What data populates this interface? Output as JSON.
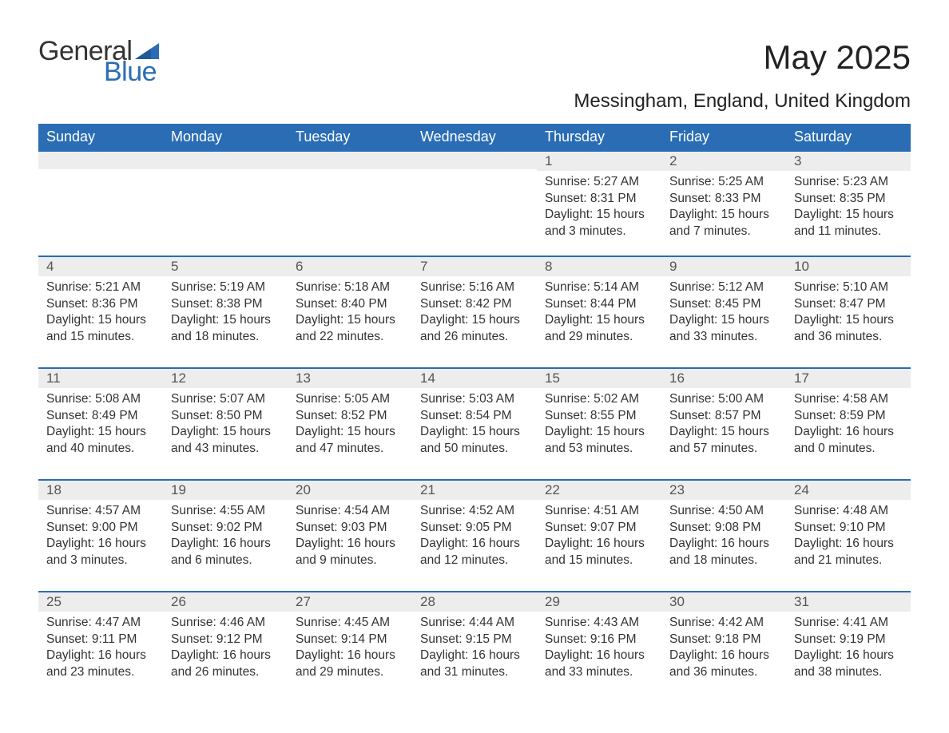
{
  "logo": {
    "general": "General",
    "blue": "Blue",
    "flag_color": "#2a6db5"
  },
  "title": "May 2025",
  "subtitle": "Messingham, England, United Kingdom",
  "colors": {
    "header_bg": "#2a6db5",
    "header_text": "#ffffff",
    "daynum_bg": "#ededed",
    "daynum_border": "#2a6db5",
    "body_text": "#333333",
    "page_bg": "#ffffff"
  },
  "weekdays": [
    "Sunday",
    "Monday",
    "Tuesday",
    "Wednesday",
    "Thursday",
    "Friday",
    "Saturday"
  ],
  "weeks": [
    [
      {
        "empty": true
      },
      {
        "empty": true
      },
      {
        "empty": true
      },
      {
        "empty": true
      },
      {
        "day": "1",
        "sunrise": "Sunrise: 5:27 AM",
        "sunset": "Sunset: 8:31 PM",
        "daylight": "Daylight: 15 hours and 3 minutes."
      },
      {
        "day": "2",
        "sunrise": "Sunrise: 5:25 AM",
        "sunset": "Sunset: 8:33 PM",
        "daylight": "Daylight: 15 hours and 7 minutes."
      },
      {
        "day": "3",
        "sunrise": "Sunrise: 5:23 AM",
        "sunset": "Sunset: 8:35 PM",
        "daylight": "Daylight: 15 hours and 11 minutes."
      }
    ],
    [
      {
        "day": "4",
        "sunrise": "Sunrise: 5:21 AM",
        "sunset": "Sunset: 8:36 PM",
        "daylight": "Daylight: 15 hours and 15 minutes."
      },
      {
        "day": "5",
        "sunrise": "Sunrise: 5:19 AM",
        "sunset": "Sunset: 8:38 PM",
        "daylight": "Daylight: 15 hours and 18 minutes."
      },
      {
        "day": "6",
        "sunrise": "Sunrise: 5:18 AM",
        "sunset": "Sunset: 8:40 PM",
        "daylight": "Daylight: 15 hours and 22 minutes."
      },
      {
        "day": "7",
        "sunrise": "Sunrise: 5:16 AM",
        "sunset": "Sunset: 8:42 PM",
        "daylight": "Daylight: 15 hours and 26 minutes."
      },
      {
        "day": "8",
        "sunrise": "Sunrise: 5:14 AM",
        "sunset": "Sunset: 8:44 PM",
        "daylight": "Daylight: 15 hours and 29 minutes."
      },
      {
        "day": "9",
        "sunrise": "Sunrise: 5:12 AM",
        "sunset": "Sunset: 8:45 PM",
        "daylight": "Daylight: 15 hours and 33 minutes."
      },
      {
        "day": "10",
        "sunrise": "Sunrise: 5:10 AM",
        "sunset": "Sunset: 8:47 PM",
        "daylight": "Daylight: 15 hours and 36 minutes."
      }
    ],
    [
      {
        "day": "11",
        "sunrise": "Sunrise: 5:08 AM",
        "sunset": "Sunset: 8:49 PM",
        "daylight": "Daylight: 15 hours and 40 minutes."
      },
      {
        "day": "12",
        "sunrise": "Sunrise: 5:07 AM",
        "sunset": "Sunset: 8:50 PM",
        "daylight": "Daylight: 15 hours and 43 minutes."
      },
      {
        "day": "13",
        "sunrise": "Sunrise: 5:05 AM",
        "sunset": "Sunset: 8:52 PM",
        "daylight": "Daylight: 15 hours and 47 minutes."
      },
      {
        "day": "14",
        "sunrise": "Sunrise: 5:03 AM",
        "sunset": "Sunset: 8:54 PM",
        "daylight": "Daylight: 15 hours and 50 minutes."
      },
      {
        "day": "15",
        "sunrise": "Sunrise: 5:02 AM",
        "sunset": "Sunset: 8:55 PM",
        "daylight": "Daylight: 15 hours and 53 minutes."
      },
      {
        "day": "16",
        "sunrise": "Sunrise: 5:00 AM",
        "sunset": "Sunset: 8:57 PM",
        "daylight": "Daylight: 15 hours and 57 minutes."
      },
      {
        "day": "17",
        "sunrise": "Sunrise: 4:58 AM",
        "sunset": "Sunset: 8:59 PM",
        "daylight": "Daylight: 16 hours and 0 minutes."
      }
    ],
    [
      {
        "day": "18",
        "sunrise": "Sunrise: 4:57 AM",
        "sunset": "Sunset: 9:00 PM",
        "daylight": "Daylight: 16 hours and 3 minutes."
      },
      {
        "day": "19",
        "sunrise": "Sunrise: 4:55 AM",
        "sunset": "Sunset: 9:02 PM",
        "daylight": "Daylight: 16 hours and 6 minutes."
      },
      {
        "day": "20",
        "sunrise": "Sunrise: 4:54 AM",
        "sunset": "Sunset: 9:03 PM",
        "daylight": "Daylight: 16 hours and 9 minutes."
      },
      {
        "day": "21",
        "sunrise": "Sunrise: 4:52 AM",
        "sunset": "Sunset: 9:05 PM",
        "daylight": "Daylight: 16 hours and 12 minutes."
      },
      {
        "day": "22",
        "sunrise": "Sunrise: 4:51 AM",
        "sunset": "Sunset: 9:07 PM",
        "daylight": "Daylight: 16 hours and 15 minutes."
      },
      {
        "day": "23",
        "sunrise": "Sunrise: 4:50 AM",
        "sunset": "Sunset: 9:08 PM",
        "daylight": "Daylight: 16 hours and 18 minutes."
      },
      {
        "day": "24",
        "sunrise": "Sunrise: 4:48 AM",
        "sunset": "Sunset: 9:10 PM",
        "daylight": "Daylight: 16 hours and 21 minutes."
      }
    ],
    [
      {
        "day": "25",
        "sunrise": "Sunrise: 4:47 AM",
        "sunset": "Sunset: 9:11 PM",
        "daylight": "Daylight: 16 hours and 23 minutes."
      },
      {
        "day": "26",
        "sunrise": "Sunrise: 4:46 AM",
        "sunset": "Sunset: 9:12 PM",
        "daylight": "Daylight: 16 hours and 26 minutes."
      },
      {
        "day": "27",
        "sunrise": "Sunrise: 4:45 AM",
        "sunset": "Sunset: 9:14 PM",
        "daylight": "Daylight: 16 hours and 29 minutes."
      },
      {
        "day": "28",
        "sunrise": "Sunrise: 4:44 AM",
        "sunset": "Sunset: 9:15 PM",
        "daylight": "Daylight: 16 hours and 31 minutes."
      },
      {
        "day": "29",
        "sunrise": "Sunrise: 4:43 AM",
        "sunset": "Sunset: 9:16 PM",
        "daylight": "Daylight: 16 hours and 33 minutes."
      },
      {
        "day": "30",
        "sunrise": "Sunrise: 4:42 AM",
        "sunset": "Sunset: 9:18 PM",
        "daylight": "Daylight: 16 hours and 36 minutes."
      },
      {
        "day": "31",
        "sunrise": "Sunrise: 4:41 AM",
        "sunset": "Sunset: 9:19 PM",
        "daylight": "Daylight: 16 hours and 38 minutes."
      }
    ]
  ]
}
